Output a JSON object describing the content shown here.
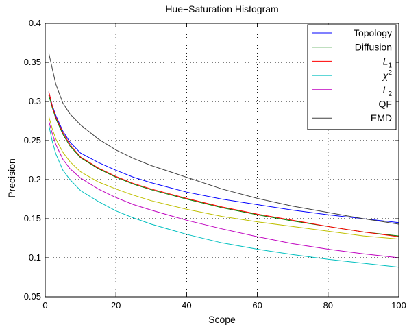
{
  "chart_data": {
    "type": "line",
    "title": "Hue−Saturation Histogram",
    "xlabel": "Scope",
    "ylabel": "Precision",
    "xlim": [
      0,
      100
    ],
    "ylim": [
      0.05,
      0.4
    ],
    "xticks": [
      0,
      20,
      40,
      60,
      80,
      100
    ],
    "yticks": [
      0.05,
      0.1,
      0.15,
      0.2,
      0.25,
      0.3,
      0.35,
      0.4
    ],
    "xtick_labels": [
      "0",
      "20",
      "40",
      "60",
      "80",
      "100"
    ],
    "ytick_labels": [
      "0.05",
      "0.1",
      "0.15",
      "0.2",
      "0.25",
      "0.3",
      "0.35",
      "0.4"
    ],
    "grid": true,
    "legend_position": "top-right",
    "x": [
      1,
      2,
      3,
      5,
      7,
      10,
      15,
      20,
      25,
      30,
      40,
      50,
      60,
      70,
      80,
      90,
      100
    ],
    "series": [
      {
        "name": "Topology",
        "legend_main": "Topology",
        "legend_sub": "",
        "legend_sup": "",
        "color": "#0000ff",
        "values": [
          0.312,
          0.295,
          0.282,
          0.262,
          0.248,
          0.234,
          0.222,
          0.212,
          0.203,
          0.196,
          0.184,
          0.175,
          0.168,
          0.161,
          0.155,
          0.15,
          0.145
        ]
      },
      {
        "name": "Diffusion",
        "legend_main": "Diffusion",
        "legend_sub": "",
        "legend_sup": "",
        "color": "#008000",
        "values": [
          0.308,
          0.292,
          0.278,
          0.258,
          0.243,
          0.228,
          0.214,
          0.203,
          0.194,
          0.187,
          0.175,
          0.164,
          0.155,
          0.147,
          0.14,
          0.133,
          0.128
        ]
      },
      {
        "name": "L1",
        "legend_main": "L",
        "legend_sub": "1",
        "legend_sup": "",
        "color": "#ff0000",
        "values": [
          0.313,
          0.294,
          0.28,
          0.26,
          0.245,
          0.229,
          0.215,
          0.204,
          0.195,
          0.188,
          0.176,
          0.165,
          0.156,
          0.148,
          0.14,
          0.133,
          0.127
        ]
      },
      {
        "name": "χ2",
        "legend_main": "χ",
        "legend_sub": "",
        "legend_sup": "2",
        "color": "#00bfbf",
        "values": [
          0.27,
          0.249,
          0.233,
          0.212,
          0.2,
          0.186,
          0.172,
          0.16,
          0.151,
          0.143,
          0.13,
          0.119,
          0.111,
          0.104,
          0.098,
          0.093,
          0.088
        ]
      },
      {
        "name": "L2",
        "legend_main": "L",
        "legend_sub": "2",
        "legend_sup": "",
        "color": "#bf00bf",
        "values": [
          0.275,
          0.259,
          0.245,
          0.226,
          0.214,
          0.202,
          0.188,
          0.177,
          0.168,
          0.161,
          0.148,
          0.137,
          0.127,
          0.118,
          0.111,
          0.105,
          0.1
        ]
      },
      {
        "name": "QF",
        "legend_main": "QF",
        "legend_sub": "",
        "legend_sup": "",
        "color": "#bfbf00",
        "values": [
          0.281,
          0.265,
          0.252,
          0.235,
          0.223,
          0.21,
          0.197,
          0.188,
          0.18,
          0.173,
          0.162,
          0.153,
          0.146,
          0.14,
          0.134,
          0.128,
          0.124
        ]
      },
      {
        "name": "EMD",
        "legend_main": "EMD",
        "legend_sub": "",
        "legend_sup": "",
        "color": "#404040",
        "values": [
          0.362,
          0.342,
          0.322,
          0.298,
          0.284,
          0.27,
          0.252,
          0.238,
          0.227,
          0.218,
          0.203,
          0.188,
          0.176,
          0.166,
          0.158,
          0.15,
          0.143
        ]
      }
    ]
  }
}
